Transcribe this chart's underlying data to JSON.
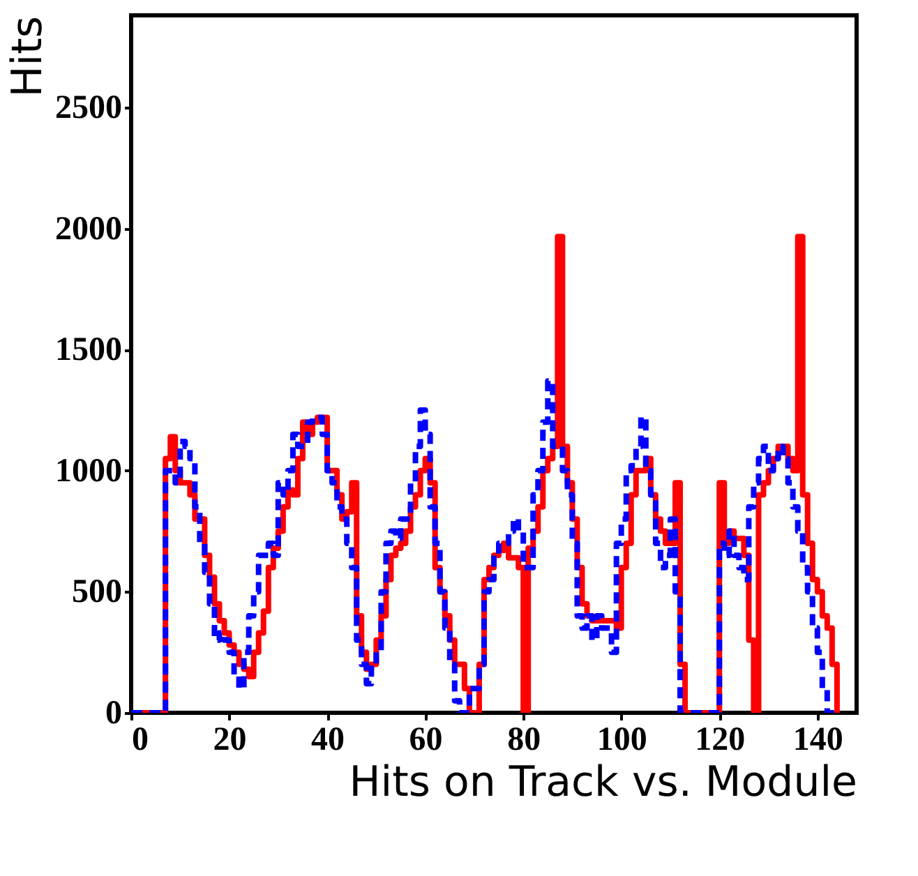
{
  "chart_data": {
    "type": "step",
    "xlabel": "Hits on Track vs. Module",
    "ylabel": "Hits",
    "x": [
      0,
      1,
      2,
      3,
      4,
      5,
      6,
      7,
      8,
      9,
      10,
      11,
      12,
      13,
      14,
      15,
      16,
      17,
      18,
      19,
      20,
      21,
      22,
      23,
      24,
      25,
      26,
      27,
      28,
      29,
      30,
      31,
      32,
      33,
      34,
      35,
      36,
      37,
      38,
      39,
      40,
      41,
      42,
      43,
      44,
      45,
      46,
      47,
      48,
      49,
      50,
      51,
      52,
      53,
      54,
      55,
      56,
      57,
      58,
      59,
      60,
      61,
      62,
      63,
      64,
      65,
      66,
      67,
      68,
      69,
      70,
      71,
      72,
      73,
      74,
      75,
      76,
      77,
      78,
      79,
      80,
      81,
      82,
      83,
      84,
      85,
      86,
      87,
      88,
      89,
      90,
      91,
      92,
      93,
      94,
      95,
      96,
      97,
      98,
      99,
      100,
      101,
      102,
      103,
      104,
      105,
      106,
      107,
      108,
      109,
      110,
      111,
      112,
      113,
      114,
      115,
      116,
      117,
      118,
      119,
      120,
      121,
      122,
      123,
      124,
      125,
      126,
      127,
      128,
      129,
      130,
      131,
      132,
      133,
      134,
      135,
      136,
      137,
      138,
      139,
      140,
      141,
      142,
      143,
      144
    ],
    "series": [
      {
        "color": "#ff0000",
        "line_style": "solid",
        "values": [
          0,
          0,
          0,
          0,
          0,
          0,
          0,
          1050,
          1140,
          1000,
          950,
          950,
          900,
          800,
          800,
          650,
          560,
          450,
          380,
          330,
          280,
          250,
          200,
          180,
          150,
          250,
          330,
          420,
          600,
          680,
          750,
          850,
          920,
          900,
          1050,
          1200,
          1150,
          1200,
          1220,
          1220,
          1000,
          1000,
          900,
          800,
          830,
          950,
          400,
          250,
          180,
          200,
          300,
          400,
          550,
          650,
          680,
          700,
          750,
          850,
          900,
          1000,
          1050,
          950,
          600,
          500,
          400,
          300,
          200,
          200,
          100,
          0,
          0,
          200,
          550,
          600,
          650,
          670,
          700,
          640,
          640,
          600,
          0,
          680,
          750,
          850,
          1000,
          1050,
          1100,
          1966,
          1100,
          950,
          800,
          600,
          450,
          400,
          380,
          380,
          380,
          380,
          380,
          350,
          600,
          700,
          900,
          1000,
          1000,
          1050,
          900,
          800,
          750,
          700,
          700,
          950,
          200,
          0,
          0,
          0,
          0,
          0,
          0,
          0,
          950,
          700,
          750,
          720,
          720,
          650,
          300,
          0,
          900,
          950,
          1000,
          1050,
          1100,
          1100,
          1050,
          1000,
          1966,
          900,
          700,
          550,
          500,
          400,
          350,
          200,
          0
        ]
      },
      {
        "color": "#0000ff",
        "line_style": "dashed",
        "values": [
          0,
          0,
          0,
          0,
          0,
          0,
          0,
          1000,
          1000,
          950,
          1120,
          1100,
          1050,
          850,
          700,
          580,
          450,
          300,
          330,
          300,
          250,
          150,
          100,
          250,
          400,
          500,
          650,
          650,
          700,
          650,
          950,
          900,
          1000,
          1150,
          1100,
          1100,
          1200,
          1220,
          1220,
          1150,
          1000,
          950,
          850,
          800,
          700,
          600,
          300,
          200,
          120,
          200,
          250,
          500,
          700,
          750,
          720,
          800,
          800,
          950,
          1100,
          1250,
          1150,
          850,
          700,
          500,
          350,
          200,
          50,
          0,
          0,
          100,
          100,
          200,
          500,
          550,
          650,
          700,
          700,
          750,
          800,
          750,
          600,
          600,
          900,
          1000,
          1200,
          1370,
          1100,
          1100,
          1000,
          900,
          700,
          400,
          350,
          400,
          300,
          400,
          350,
          350,
          250,
          700,
          800,
          1000,
          1020,
          1100,
          1220,
          1000,
          900,
          700,
          600,
          650,
          800,
          500,
          0,
          0,
          0,
          0,
          0,
          0,
          0,
          0,
          700,
          650,
          750,
          650,
          600,
          550,
          850,
          950,
          1050,
          1100,
          1000,
          1050,
          1100,
          1050,
          950,
          850,
          750,
          600,
          500,
          350,
          250,
          100,
          0,
          0,
          0
        ]
      }
    ],
    "xlim": [
      0,
      148
    ],
    "xticks": [
      0,
      20,
      40,
      60,
      80,
      100,
      120,
      140
    ],
    "ylim": [
      0,
      2880
    ],
    "yticks": [
      0,
      500,
      1000,
      1500,
      2000,
      2500
    ],
    "grid": false
  }
}
